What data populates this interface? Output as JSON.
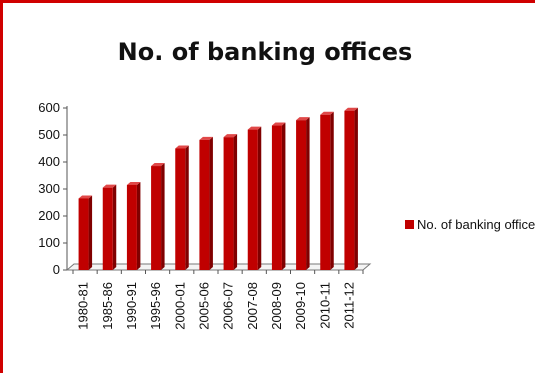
{
  "chart_data": {
    "type": "bar",
    "title": "No. of banking offices",
    "categories": [
      "1980-81",
      "1985-86",
      "1990-91",
      "1995-96",
      "2000-01",
      "2005-06",
      "2006-07",
      "2007-08",
      "2008-09",
      "2009-10",
      "2010-11",
      "2011-12"
    ],
    "series": [
      {
        "name": "No. of banking offices",
        "values": [
          265,
          305,
          315,
          385,
          450,
          482,
          492,
          520,
          535,
          555,
          575,
          590
        ],
        "color": "#c00000"
      }
    ],
    "y_ticks": [
      0,
      100,
      200,
      300,
      400,
      500,
      600
    ],
    "ylim": [
      0,
      600
    ],
    "grid": false,
    "legend": "right",
    "xlabel": "",
    "ylabel": ""
  },
  "colors": {
    "border": "#d00000",
    "bar_front": "#c00000",
    "bar_side": "#800000",
    "bar_top": "#e04848"
  }
}
